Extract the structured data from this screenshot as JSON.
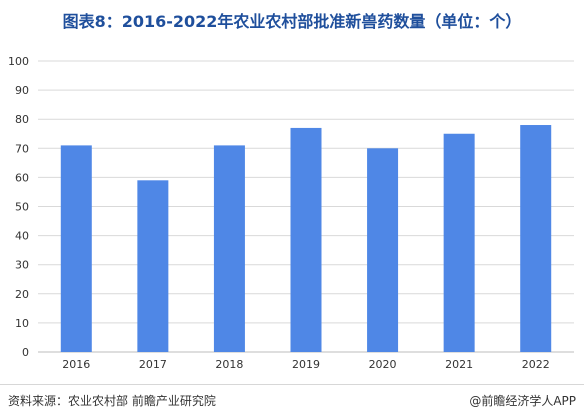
{
  "title": "图表8：2016-2022年农业农村部批准新兽药数量（单位：个）",
  "footer": {
    "source": "资料来源：农业农村部 前瞻产业研究院",
    "brand": "@前瞻经济学人APP"
  },
  "colors": {
    "bar": "#4f87e6",
    "grid": "#d9d9d9",
    "title": "#1f4f9c"
  },
  "chart_data": {
    "type": "bar",
    "categories": [
      "2016",
      "2017",
      "2018",
      "2019",
      "2020",
      "2021",
      "2022"
    ],
    "values": [
      71,
      59,
      71,
      77,
      70,
      75,
      78
    ],
    "title": "图表8：2016-2022年农业农村部批准新兽药数量（单位：个）",
    "xlabel": "",
    "ylabel": "",
    "ylim": [
      0,
      100
    ],
    "yticks": [
      0,
      10,
      20,
      30,
      40,
      50,
      60,
      70,
      80,
      90,
      100
    ],
    "grid": true,
    "legend": "none"
  }
}
